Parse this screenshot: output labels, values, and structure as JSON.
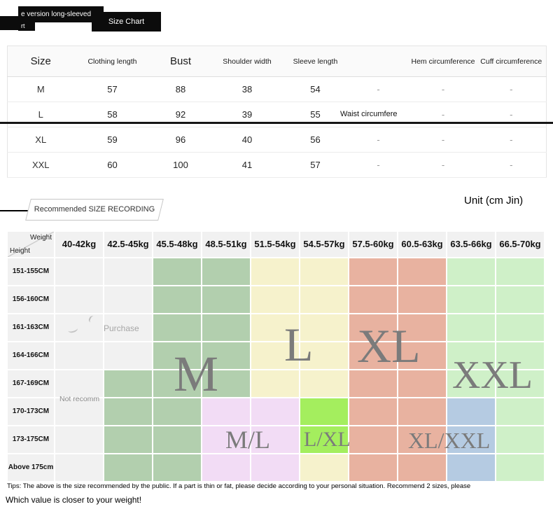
{
  "badges": {
    "product_label_line1": "e version long-sleeved",
    "product_label_line2": "rt",
    "size_chart": "Size Chart"
  },
  "size_table": {
    "headers": [
      "Size",
      "Clothing length",
      "Bust",
      "Shoulder width",
      "Sleeve length",
      "",
      "Hem circumference",
      "Cuff circumference"
    ],
    "floating_label": "Waist circumfere",
    "rows": [
      {
        "size": "M",
        "values": [
          "57",
          "88",
          "38",
          "54",
          "-",
          "-",
          "-"
        ]
      },
      {
        "size": "L",
        "values": [
          "58",
          "92",
          "39",
          "55",
          "",
          "-",
          "-"
        ]
      },
      {
        "size": "XL",
        "values": [
          "59",
          "96",
          "40",
          "56",
          "-",
          "-",
          "-"
        ]
      },
      {
        "size": "XXL",
        "values": [
          "60",
          "100",
          "41",
          "57",
          "-",
          "-",
          "-"
        ]
      }
    ]
  },
  "unit_label": "Unit (cm Jin)",
  "recommend_banner": "Recommended SIZE RECORDING",
  "grid": {
    "corner_top": "Weight",
    "corner_bottom": "Height",
    "weights": [
      "40-42kg",
      "42.5-45kg",
      "45.5-48kg",
      "48.5-51kg",
      "51.5-54kg",
      "54.5-57kg",
      "57.5-60kg",
      "60.5-63kg",
      "63.5-66kg",
      "66.5-70kg"
    ],
    "heights": [
      "151-155CM",
      "156-160CM",
      "161-163CM",
      "164-166CM",
      "167-169CM",
      "170-173CM",
      "173-175CM",
      "Above 175cm"
    ],
    "cells": [
      [
        ".",
        ".",
        "M",
        "M",
        "L",
        "L",
        "XL",
        "XL",
        "XXL",
        "XXL"
      ],
      [
        ".",
        ".",
        "M",
        "M",
        "L",
        "L",
        "XL",
        "XL",
        "XXL",
        "XXL"
      ],
      [
        ".",
        ".",
        "M",
        "M",
        "L",
        "L",
        "XL",
        "XL",
        "XXL",
        "XXL"
      ],
      [
        ".",
        ".",
        "M",
        "M",
        "L",
        "L",
        "XL",
        "XL",
        "XXL",
        "XXL"
      ],
      [
        ".",
        "M",
        "M",
        "M",
        "L",
        "L",
        "XL",
        "XL",
        "XXL",
        "XXL"
      ],
      [
        ".",
        "M",
        "M",
        "ML",
        "ML",
        "LXL",
        "XL",
        "XL",
        "XLXXL",
        "XXL"
      ],
      [
        ".",
        "M",
        "M",
        "ML",
        "ML",
        "LXL",
        "XL",
        "XL",
        "XLXXL",
        "XXL"
      ],
      [
        ".",
        "M",
        "M",
        "ML",
        "ML",
        "L",
        "XL",
        "XL",
        "XLXXL",
        "XXL"
      ]
    ],
    "colors": {
      ".": "#f1f1f1",
      "M": "#b2cfae",
      "L": "#f6f2cc",
      "XL": "#e8b2a0",
      "XXL": "#cff0c8",
      "ML": "#f2dcf5",
      "LXL": "#a4ee5e",
      "XLXXL": "#b5cbe2"
    },
    "region_labels": [
      {
        "id": "m",
        "text": "M"
      },
      {
        "id": "l",
        "text": "L"
      },
      {
        "id": "xl",
        "text": "XL"
      },
      {
        "id": "xxl",
        "text": "XXL"
      },
      {
        "id": "ml",
        "text": "M/L"
      },
      {
        "id": "lxl",
        "text": "L/XL"
      },
      {
        "id": "xlxxl",
        "text": "XL/XXL"
      }
    ],
    "watermarks": [
      {
        "id": "purchase",
        "text": "Purchase"
      },
      {
        "id": "notrecomm",
        "text": "Not recomm"
      }
    ]
  },
  "tips": "Tips: The above is the size recommended by the public. If a part is thin or fat, please decide according to your personal situation. Recommend 2 sizes, please",
  "footer_note": "Which value is closer to your weight!"
}
